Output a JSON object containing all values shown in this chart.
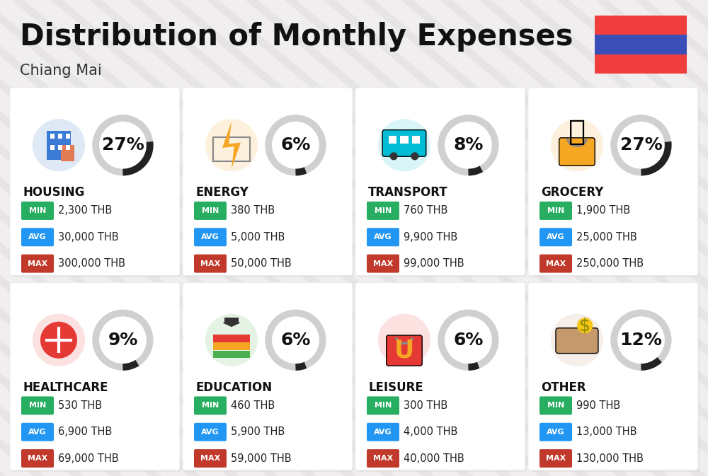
{
  "title": "Distribution of Monthly Expenses",
  "subtitle": "Chiang Mai",
  "bg_color": "#f0eeee",
  "card_color": "#ffffff",
  "stripe_color": "#e0dede",
  "categories": [
    {
      "name": "HOUSING",
      "pct": 27,
      "min_val": "2,300 THB",
      "avg_val": "30,000 THB",
      "max_val": "300,000 THB",
      "row": 0,
      "col": 0,
      "icon_color": "#2e6bbf"
    },
    {
      "name": "ENERGY",
      "pct": 6,
      "min_val": "380 THB",
      "avg_val": "5,000 THB",
      "max_val": "50,000 THB",
      "row": 0,
      "col": 1,
      "icon_color": "#f5a623"
    },
    {
      "name": "TRANSPORT",
      "pct": 8,
      "min_val": "760 THB",
      "avg_val": "9,900 THB",
      "max_val": "99,000 THB",
      "row": 0,
      "col": 2,
      "icon_color": "#00bcd4"
    },
    {
      "name": "GROCERY",
      "pct": 27,
      "min_val": "1,900 THB",
      "avg_val": "25,000 THB",
      "max_val": "250,000 THB",
      "row": 0,
      "col": 3,
      "icon_color": "#f5a623"
    },
    {
      "name": "HEALTHCARE",
      "pct": 9,
      "min_val": "530 THB",
      "avg_val": "6,900 THB",
      "max_val": "69,000 THB",
      "row": 1,
      "col": 0,
      "icon_color": "#e53935"
    },
    {
      "name": "EDUCATION",
      "pct": 6,
      "min_val": "460 THB",
      "avg_val": "5,900 THB",
      "max_val": "59,000 THB",
      "row": 1,
      "col": 1,
      "icon_color": "#4caf50"
    },
    {
      "name": "LEISURE",
      "pct": 6,
      "min_val": "300 THB",
      "avg_val": "4,000 THB",
      "max_val": "40,000 THB",
      "row": 1,
      "col": 2,
      "icon_color": "#e53935"
    },
    {
      "name": "OTHER",
      "pct": 12,
      "min_val": "990 THB",
      "avg_val": "13,000 THB",
      "max_val": "130,000 THB",
      "row": 1,
      "col": 3,
      "icon_color": "#c49a6c"
    }
  ],
  "min_color": "#27ae60",
  "avg_color": "#2196f3",
  "max_color": "#c0392b",
  "arc_dark": "#222222",
  "arc_light": "#d0d0d0",
  "title_fontsize": 30,
  "subtitle_fontsize": 15,
  "cat_fontsize": 12,
  "val_fontsize": 10.5,
  "pct_fontsize": 18,
  "flag_red": "#f03e3e",
  "flag_blue": "#3b4eb8"
}
